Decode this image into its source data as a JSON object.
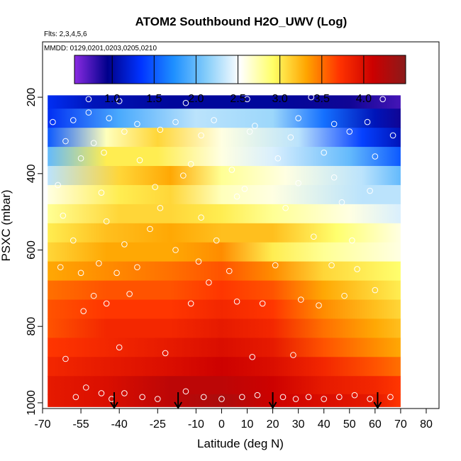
{
  "chart_data": {
    "type": "heatmap",
    "title": "ATOM2 Southbound H2O_UWV (Log)",
    "subtitle_flights": "Flts: 2,3,4,5,6",
    "subtitle_dates": "MMDD: 0129,0201,0203,0205,0210",
    "xlabel": "Latitude (deg N)",
    "ylabel": "PSXC (mbar)",
    "xlim": [
      -70,
      85
    ],
    "ylim": [
      1015,
      55
    ],
    "x_ticks": [
      -70,
      -55,
      -40,
      -25,
      -10,
      0,
      10,
      20,
      30,
      40,
      50,
      60,
      70,
      80
    ],
    "x_tick_labels": [
      "-70",
      "-55",
      "-40",
      "-25",
      "-10",
      "0",
      "10",
      "20",
      "30",
      "40",
      "50",
      "60",
      "70",
      "80"
    ],
    "y_ticks": [
      200,
      400,
      600,
      800,
      1000
    ],
    "y_tick_labels": [
      "200",
      "400",
      "600",
      "800",
      "1000"
    ],
    "colorbar": {
      "range": [
        0.55,
        4.5
      ],
      "ticks": [
        1.0,
        1.5,
        2.0,
        2.5,
        3.0,
        3.5,
        4.0
      ],
      "tick_labels": [
        "1.0",
        "1.5",
        "2.0",
        "2.5",
        "3.0",
        "3.5",
        "4.0"
      ],
      "colors": [
        "#8a2be2",
        "#00008b",
        "#0033ff",
        "#1e90ff",
        "#87cefa",
        "#ffffff",
        "#ffff66",
        "#ffa500",
        "#ff3300",
        "#cc0000",
        "#8b1a1a"
      ]
    },
    "data_extent": {
      "lat_min": -68,
      "lat_max": 72,
      "p_top": 195,
      "p_bottom": 1010
    },
    "layer_pressures": [
      205,
      255,
      305,
      355,
      405,
      455,
      505,
      555,
      605,
      655,
      705,
      755,
      805,
      855,
      905,
      955,
      1000
    ],
    "layer_profiles": [
      [
        [
          -68,
          1.3
        ],
        [
          -50,
          1.1
        ],
        [
          -20,
          1.0
        ],
        [
          20,
          1.0
        ],
        [
          50,
          0.9
        ],
        [
          70,
          0.75
        ]
      ],
      [
        [
          -68,
          1.3
        ],
        [
          -40,
          1.9
        ],
        [
          -10,
          2.3
        ],
        [
          20,
          2.2
        ],
        [
          40,
          1.6
        ],
        [
          60,
          1.1
        ],
        [
          70,
          0.9
        ]
      ],
      [
        [
          -68,
          1.5
        ],
        [
          -45,
          2.7
        ],
        [
          -25,
          3.1
        ],
        [
          0,
          2.6
        ],
        [
          30,
          2.3
        ],
        [
          55,
          1.4
        ],
        [
          70,
          1.1
        ]
      ],
      [
        [
          -68,
          2.0
        ],
        [
          -45,
          3.0
        ],
        [
          -25,
          3.0
        ],
        [
          0,
          2.6
        ],
        [
          20,
          2.4
        ],
        [
          50,
          2.0
        ],
        [
          70,
          1.5
        ]
      ],
      [
        [
          -68,
          2.3
        ],
        [
          -40,
          3.1
        ],
        [
          -20,
          3.3
        ],
        [
          0,
          2.8
        ],
        [
          25,
          2.6
        ],
        [
          55,
          2.3
        ],
        [
          70,
          2.0
        ]
      ],
      [
        [
          -68,
          2.6
        ],
        [
          -40,
          3.0
        ],
        [
          -20,
          3.1
        ],
        [
          0,
          2.7
        ],
        [
          20,
          2.6
        ],
        [
          55,
          2.3
        ],
        [
          70,
          2.3
        ]
      ],
      [
        [
          -68,
          2.8
        ],
        [
          -40,
          3.1
        ],
        [
          -20,
          3.1
        ],
        [
          0,
          3.0
        ],
        [
          20,
          2.8
        ],
        [
          50,
          2.6
        ],
        [
          70,
          2.4
        ]
      ],
      [
        [
          -68,
          3.0
        ],
        [
          -45,
          3.2
        ],
        [
          -20,
          3.3
        ],
        [
          0,
          3.2
        ],
        [
          20,
          3.2
        ],
        [
          45,
          2.9
        ],
        [
          70,
          2.6
        ]
      ],
      [
        [
          -68,
          3.1
        ],
        [
          -45,
          3.3
        ],
        [
          -20,
          3.3
        ],
        [
          0,
          3.4
        ],
        [
          20,
          3.0
        ],
        [
          40,
          2.8
        ],
        [
          70,
          2.6
        ]
      ],
      [
        [
          -68,
          3.3
        ],
        [
          -45,
          3.4
        ],
        [
          -20,
          3.5
        ],
        [
          0,
          3.6
        ],
        [
          20,
          3.4
        ],
        [
          40,
          3.1
        ],
        [
          70,
          2.9
        ]
      ],
      [
        [
          -68,
          3.5
        ],
        [
          -45,
          3.6
        ],
        [
          -20,
          3.6
        ],
        [
          0,
          3.7
        ],
        [
          20,
          3.6
        ],
        [
          40,
          3.3
        ],
        [
          60,
          3.1
        ],
        [
          70,
          3.0
        ]
      ],
      [
        [
          -68,
          3.6
        ],
        [
          -45,
          3.7
        ],
        [
          -20,
          3.7
        ],
        [
          0,
          3.8
        ],
        [
          20,
          3.7
        ],
        [
          40,
          3.4
        ],
        [
          60,
          3.2
        ],
        [
          70,
          3.1
        ]
      ],
      [
        [
          -68,
          3.6
        ],
        [
          -45,
          3.8
        ],
        [
          -20,
          3.8
        ],
        [
          0,
          3.9
        ],
        [
          20,
          3.8
        ],
        [
          40,
          3.5
        ],
        [
          60,
          3.3
        ],
        [
          70,
          3.2
        ]
      ],
      [
        [
          -68,
          3.7
        ],
        [
          -45,
          3.8
        ],
        [
          -20,
          3.9
        ],
        [
          0,
          4.0
        ],
        [
          20,
          3.9
        ],
        [
          40,
          3.6
        ],
        [
          60,
          3.4
        ],
        [
          70,
          3.3
        ]
      ],
      [
        [
          -68,
          3.8
        ],
        [
          -45,
          3.9
        ],
        [
          -20,
          4.0
        ],
        [
          0,
          4.1
        ],
        [
          20,
          4.0
        ],
        [
          40,
          3.8
        ],
        [
          60,
          3.6
        ],
        [
          70,
          3.5
        ]
      ],
      [
        [
          -68,
          3.9
        ],
        [
          -45,
          4.0
        ],
        [
          -20,
          4.2
        ],
        [
          0,
          4.2
        ],
        [
          20,
          4.1
        ],
        [
          40,
          3.9
        ],
        [
          60,
          3.8
        ],
        [
          70,
          3.7
        ]
      ],
      [
        [
          -68,
          3.9
        ],
        [
          -45,
          4.0
        ],
        [
          -20,
          4.2
        ],
        [
          0,
          4.3
        ],
        [
          20,
          4.1
        ],
        [
          40,
          4.0
        ],
        [
          60,
          3.9
        ],
        [
          70,
          3.7
        ]
      ]
    ],
    "sample_points": [
      [
        -57,
        985
      ],
      [
        -53,
        960
      ],
      [
        -47,
        975
      ],
      [
        -43,
        990
      ],
      [
        -38,
        975
      ],
      [
        -31,
        985
      ],
      [
        -25,
        990
      ],
      [
        -14,
        970
      ],
      [
        -7,
        985
      ],
      [
        0,
        990
      ],
      [
        8,
        985
      ],
      [
        14,
        980
      ],
      [
        24,
        985
      ],
      [
        29,
        990
      ],
      [
        34,
        985
      ],
      [
        40,
        990
      ],
      [
        46,
        985
      ],
      [
        52,
        980
      ],
      [
        58,
        990
      ],
      [
        66,
        985
      ],
      [
        -61,
        885
      ],
      [
        -40,
        855
      ],
      [
        -22,
        870
      ],
      [
        12,
        880
      ],
      [
        28,
        875
      ],
      [
        -54,
        760
      ],
      [
        -50,
        720
      ],
      [
        -45,
        740
      ],
      [
        -36,
        715
      ],
      [
        -12,
        740
      ],
      [
        -5,
        685
      ],
      [
        6,
        735
      ],
      [
        16,
        740
      ],
      [
        31,
        730
      ],
      [
        38,
        745
      ],
      [
        48,
        720
      ],
      [
        60,
        705
      ],
      [
        -63,
        645
      ],
      [
        -55,
        660
      ],
      [
        -48,
        635
      ],
      [
        -41,
        660
      ],
      [
        -33,
        645
      ],
      [
        -18,
        600
      ],
      [
        -9,
        630
      ],
      [
        3,
        655
      ],
      [
        21,
        640
      ],
      [
        43,
        640
      ],
      [
        53,
        650
      ],
      [
        -58,
        575
      ],
      [
        -38,
        585
      ],
      [
        -28,
        545
      ],
      [
        -2,
        575
      ],
      [
        36,
        565
      ],
      [
        51,
        575
      ],
      [
        -62,
        510
      ],
      [
        -45,
        525
      ],
      [
        -24,
        490
      ],
      [
        -8,
        515
      ],
      [
        6,
        460
      ],
      [
        25,
        490
      ],
      [
        47,
        475
      ],
      [
        -64,
        430
      ],
      [
        -47,
        450
      ],
      [
        -26,
        435
      ],
      [
        -15,
        405
      ],
      [
        9,
        440
      ],
      [
        30,
        425
      ],
      [
        44,
        410
      ],
      [
        58,
        445
      ],
      [
        -55,
        360
      ],
      [
        -46,
        345
      ],
      [
        -32,
        365
      ],
      [
        -12,
        375
      ],
      [
        4,
        390
      ],
      [
        22,
        360
      ],
      [
        40,
        345
      ],
      [
        60,
        355
      ],
      [
        -61,
        315
      ],
      [
        -50,
        320
      ],
      [
        -38,
        290
      ],
      [
        -24,
        285
      ],
      [
        -8,
        300
      ],
      [
        11,
        290
      ],
      [
        27,
        305
      ],
      [
        50,
        290
      ],
      [
        67,
        300
      ],
      [
        -66,
        265
      ],
      [
        -58,
        260
      ],
      [
        -44,
        255
      ],
      [
        -33,
        270
      ],
      [
        -18,
        265
      ],
      [
        -3,
        260
      ],
      [
        13,
        275
      ],
      [
        30,
        255
      ],
      [
        44,
        270
      ],
      [
        57,
        265
      ],
      [
        -52,
        240
      ],
      [
        -14,
        215
      ],
      [
        -40,
        210
      ],
      [
        10,
        205
      ],
      [
        35,
        200
      ],
      [
        63,
        205
      ],
      [
        -52,
        205
      ]
    ],
    "arrow_latitudes": [
      -42,
      -17,
      20,
      61
    ]
  }
}
